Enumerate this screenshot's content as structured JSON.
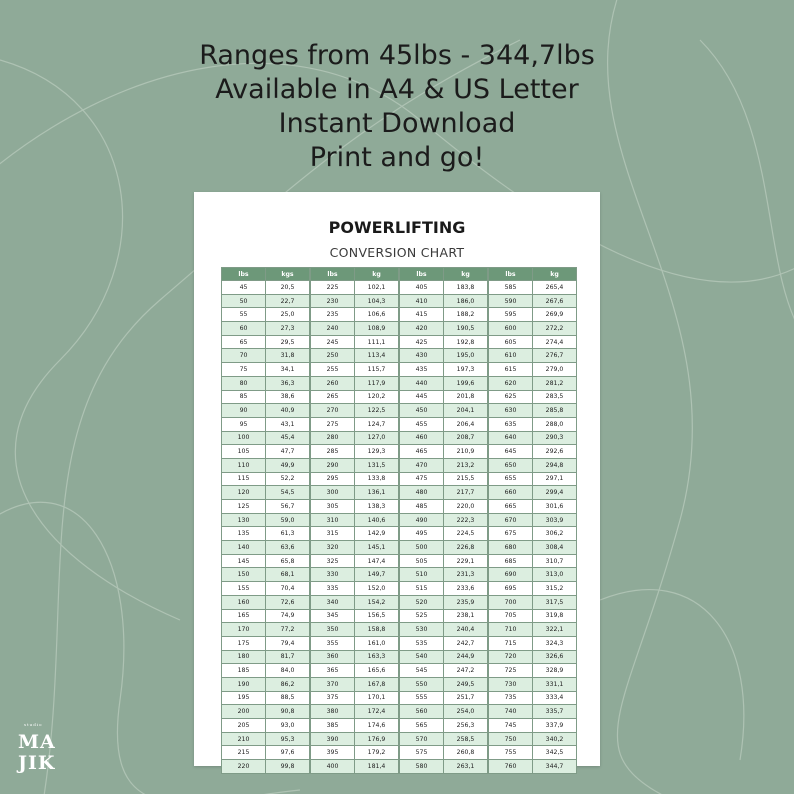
{
  "headline": [
    "Ranges from 45lbs - 344,7lbs",
    "Available in A4 & US Letter",
    "Instant Download",
    "Print and go!"
  ],
  "chart": {
    "title": "POWERLIFTING",
    "subtitle": "CONVERSION CHART"
  },
  "tables": [
    {
      "headers": [
        "lbs",
        "kgs"
      ],
      "rows": [
        [
          "45",
          "20,5"
        ],
        [
          "50",
          "22,7"
        ],
        [
          "55",
          "25,0"
        ],
        [
          "60",
          "27,3"
        ],
        [
          "65",
          "29,5"
        ],
        [
          "70",
          "31,8"
        ],
        [
          "75",
          "34,1"
        ],
        [
          "80",
          "36,3"
        ],
        [
          "85",
          "38,6"
        ],
        [
          "90",
          "40,9"
        ],
        [
          "95",
          "43,1"
        ],
        [
          "100",
          "45,4"
        ],
        [
          "105",
          "47,7"
        ],
        [
          "110",
          "49,9"
        ],
        [
          "115",
          "52,2"
        ],
        [
          "120",
          "54,5"
        ],
        [
          "125",
          "56,7"
        ],
        [
          "130",
          "59,0"
        ],
        [
          "135",
          "61,3"
        ],
        [
          "140",
          "63,6"
        ],
        [
          "145",
          "65,8"
        ],
        [
          "150",
          "68,1"
        ],
        [
          "155",
          "70,4"
        ],
        [
          "160",
          "72,6"
        ],
        [
          "165",
          "74,9"
        ],
        [
          "170",
          "77,2"
        ],
        [
          "175",
          "79,4"
        ],
        [
          "180",
          "81,7"
        ],
        [
          "185",
          "84,0"
        ],
        [
          "190",
          "86,2"
        ],
        [
          "195",
          "88,5"
        ],
        [
          "200",
          "90,8"
        ],
        [
          "205",
          "93,0"
        ],
        [
          "210",
          "95,3"
        ],
        [
          "215",
          "97,6"
        ],
        [
          "220",
          "99,8"
        ]
      ]
    },
    {
      "headers": [
        "lbs",
        "kg"
      ],
      "rows": [
        [
          "225",
          "102,1"
        ],
        [
          "230",
          "104,3"
        ],
        [
          "235",
          "106,6"
        ],
        [
          "240",
          "108,9"
        ],
        [
          "245",
          "111,1"
        ],
        [
          "250",
          "113,4"
        ],
        [
          "255",
          "115,7"
        ],
        [
          "260",
          "117,9"
        ],
        [
          "265",
          "120,2"
        ],
        [
          "270",
          "122,5"
        ],
        [
          "275",
          "124,7"
        ],
        [
          "280",
          "127,0"
        ],
        [
          "285",
          "129,3"
        ],
        [
          "290",
          "131,5"
        ],
        [
          "295",
          "133,8"
        ],
        [
          "300",
          "136,1"
        ],
        [
          "305",
          "138,3"
        ],
        [
          "310",
          "140,6"
        ],
        [
          "315",
          "142,9"
        ],
        [
          "320",
          "145,1"
        ],
        [
          "325",
          "147,4"
        ],
        [
          "330",
          "149,7"
        ],
        [
          "335",
          "152,0"
        ],
        [
          "340",
          "154,2"
        ],
        [
          "345",
          "156,5"
        ],
        [
          "350",
          "158,8"
        ],
        [
          "355",
          "161,0"
        ],
        [
          "360",
          "163,3"
        ],
        [
          "365",
          "165,6"
        ],
        [
          "370",
          "167,8"
        ],
        [
          "375",
          "170,1"
        ],
        [
          "380",
          "172,4"
        ],
        [
          "385",
          "174,6"
        ],
        [
          "390",
          "176,9"
        ],
        [
          "395",
          "179,2"
        ],
        [
          "400",
          "181,4"
        ]
      ]
    },
    {
      "headers": [
        "lbs",
        "kg"
      ],
      "rows": [
        [
          "405",
          "183,8"
        ],
        [
          "410",
          "186,0"
        ],
        [
          "415",
          "188,2"
        ],
        [
          "420",
          "190,5"
        ],
        [
          "425",
          "192,8"
        ],
        [
          "430",
          "195,0"
        ],
        [
          "435",
          "197,3"
        ],
        [
          "440",
          "199,6"
        ],
        [
          "445",
          "201,8"
        ],
        [
          "450",
          "204,1"
        ],
        [
          "455",
          "206,4"
        ],
        [
          "460",
          "208,7"
        ],
        [
          "465",
          "210,9"
        ],
        [
          "470",
          "213,2"
        ],
        [
          "475",
          "215,5"
        ],
        [
          "480",
          "217,7"
        ],
        [
          "485",
          "220,0"
        ],
        [
          "490",
          "222,3"
        ],
        [
          "495",
          "224,5"
        ],
        [
          "500",
          "226,8"
        ],
        [
          "505",
          "229,1"
        ],
        [
          "510",
          "231,3"
        ],
        [
          "515",
          "233,6"
        ],
        [
          "520",
          "235,9"
        ],
        [
          "525",
          "238,1"
        ],
        [
          "530",
          "240,4"
        ],
        [
          "535",
          "242,7"
        ],
        [
          "540",
          "244,9"
        ],
        [
          "545",
          "247,2"
        ],
        [
          "550",
          "249,5"
        ],
        [
          "555",
          "251,7"
        ],
        [
          "560",
          "254,0"
        ],
        [
          "565",
          "256,3"
        ],
        [
          "570",
          "258,5"
        ],
        [
          "575",
          "260,8"
        ],
        [
          "580",
          "263,1"
        ]
      ]
    },
    {
      "headers": [
        "lbs",
        "kg"
      ],
      "rows": [
        [
          "585",
          "265,4"
        ],
        [
          "590",
          "267,6"
        ],
        [
          "595",
          "269,9"
        ],
        [
          "600",
          "272,2"
        ],
        [
          "605",
          "274,4"
        ],
        [
          "610",
          "276,7"
        ],
        [
          "615",
          "279,0"
        ],
        [
          "620",
          "281,2"
        ],
        [
          "625",
          "283,5"
        ],
        [
          "630",
          "285,8"
        ],
        [
          "635",
          "288,0"
        ],
        [
          "640",
          "290,3"
        ],
        [
          "645",
          "292,6"
        ],
        [
          "650",
          "294,8"
        ],
        [
          "655",
          "297,1"
        ],
        [
          "660",
          "299,4"
        ],
        [
          "665",
          "301,6"
        ],
        [
          "670",
          "303,9"
        ],
        [
          "675",
          "306,2"
        ],
        [
          "680",
          "308,4"
        ],
        [
          "685",
          "310,7"
        ],
        [
          "690",
          "313,0"
        ],
        [
          "695",
          "315,2"
        ],
        [
          "700",
          "317,5"
        ],
        [
          "705",
          "319,8"
        ],
        [
          "710",
          "322,1"
        ],
        [
          "715",
          "324,3"
        ],
        [
          "720",
          "326,6"
        ],
        [
          "725",
          "328,9"
        ],
        [
          "730",
          "331,1"
        ],
        [
          "735",
          "333,4"
        ],
        [
          "740",
          "335,7"
        ],
        [
          "745",
          "337,9"
        ],
        [
          "750",
          "340,2"
        ],
        [
          "755",
          "342,5"
        ],
        [
          "760",
          "344,7"
        ]
      ]
    }
  ],
  "logo": {
    "small": "studio",
    "line1": "MA",
    "line2": "JIK"
  },
  "colors": {
    "background": "#8faa98",
    "header_fill": "#6d9879",
    "stripe_fill": "#dceee0"
  }
}
